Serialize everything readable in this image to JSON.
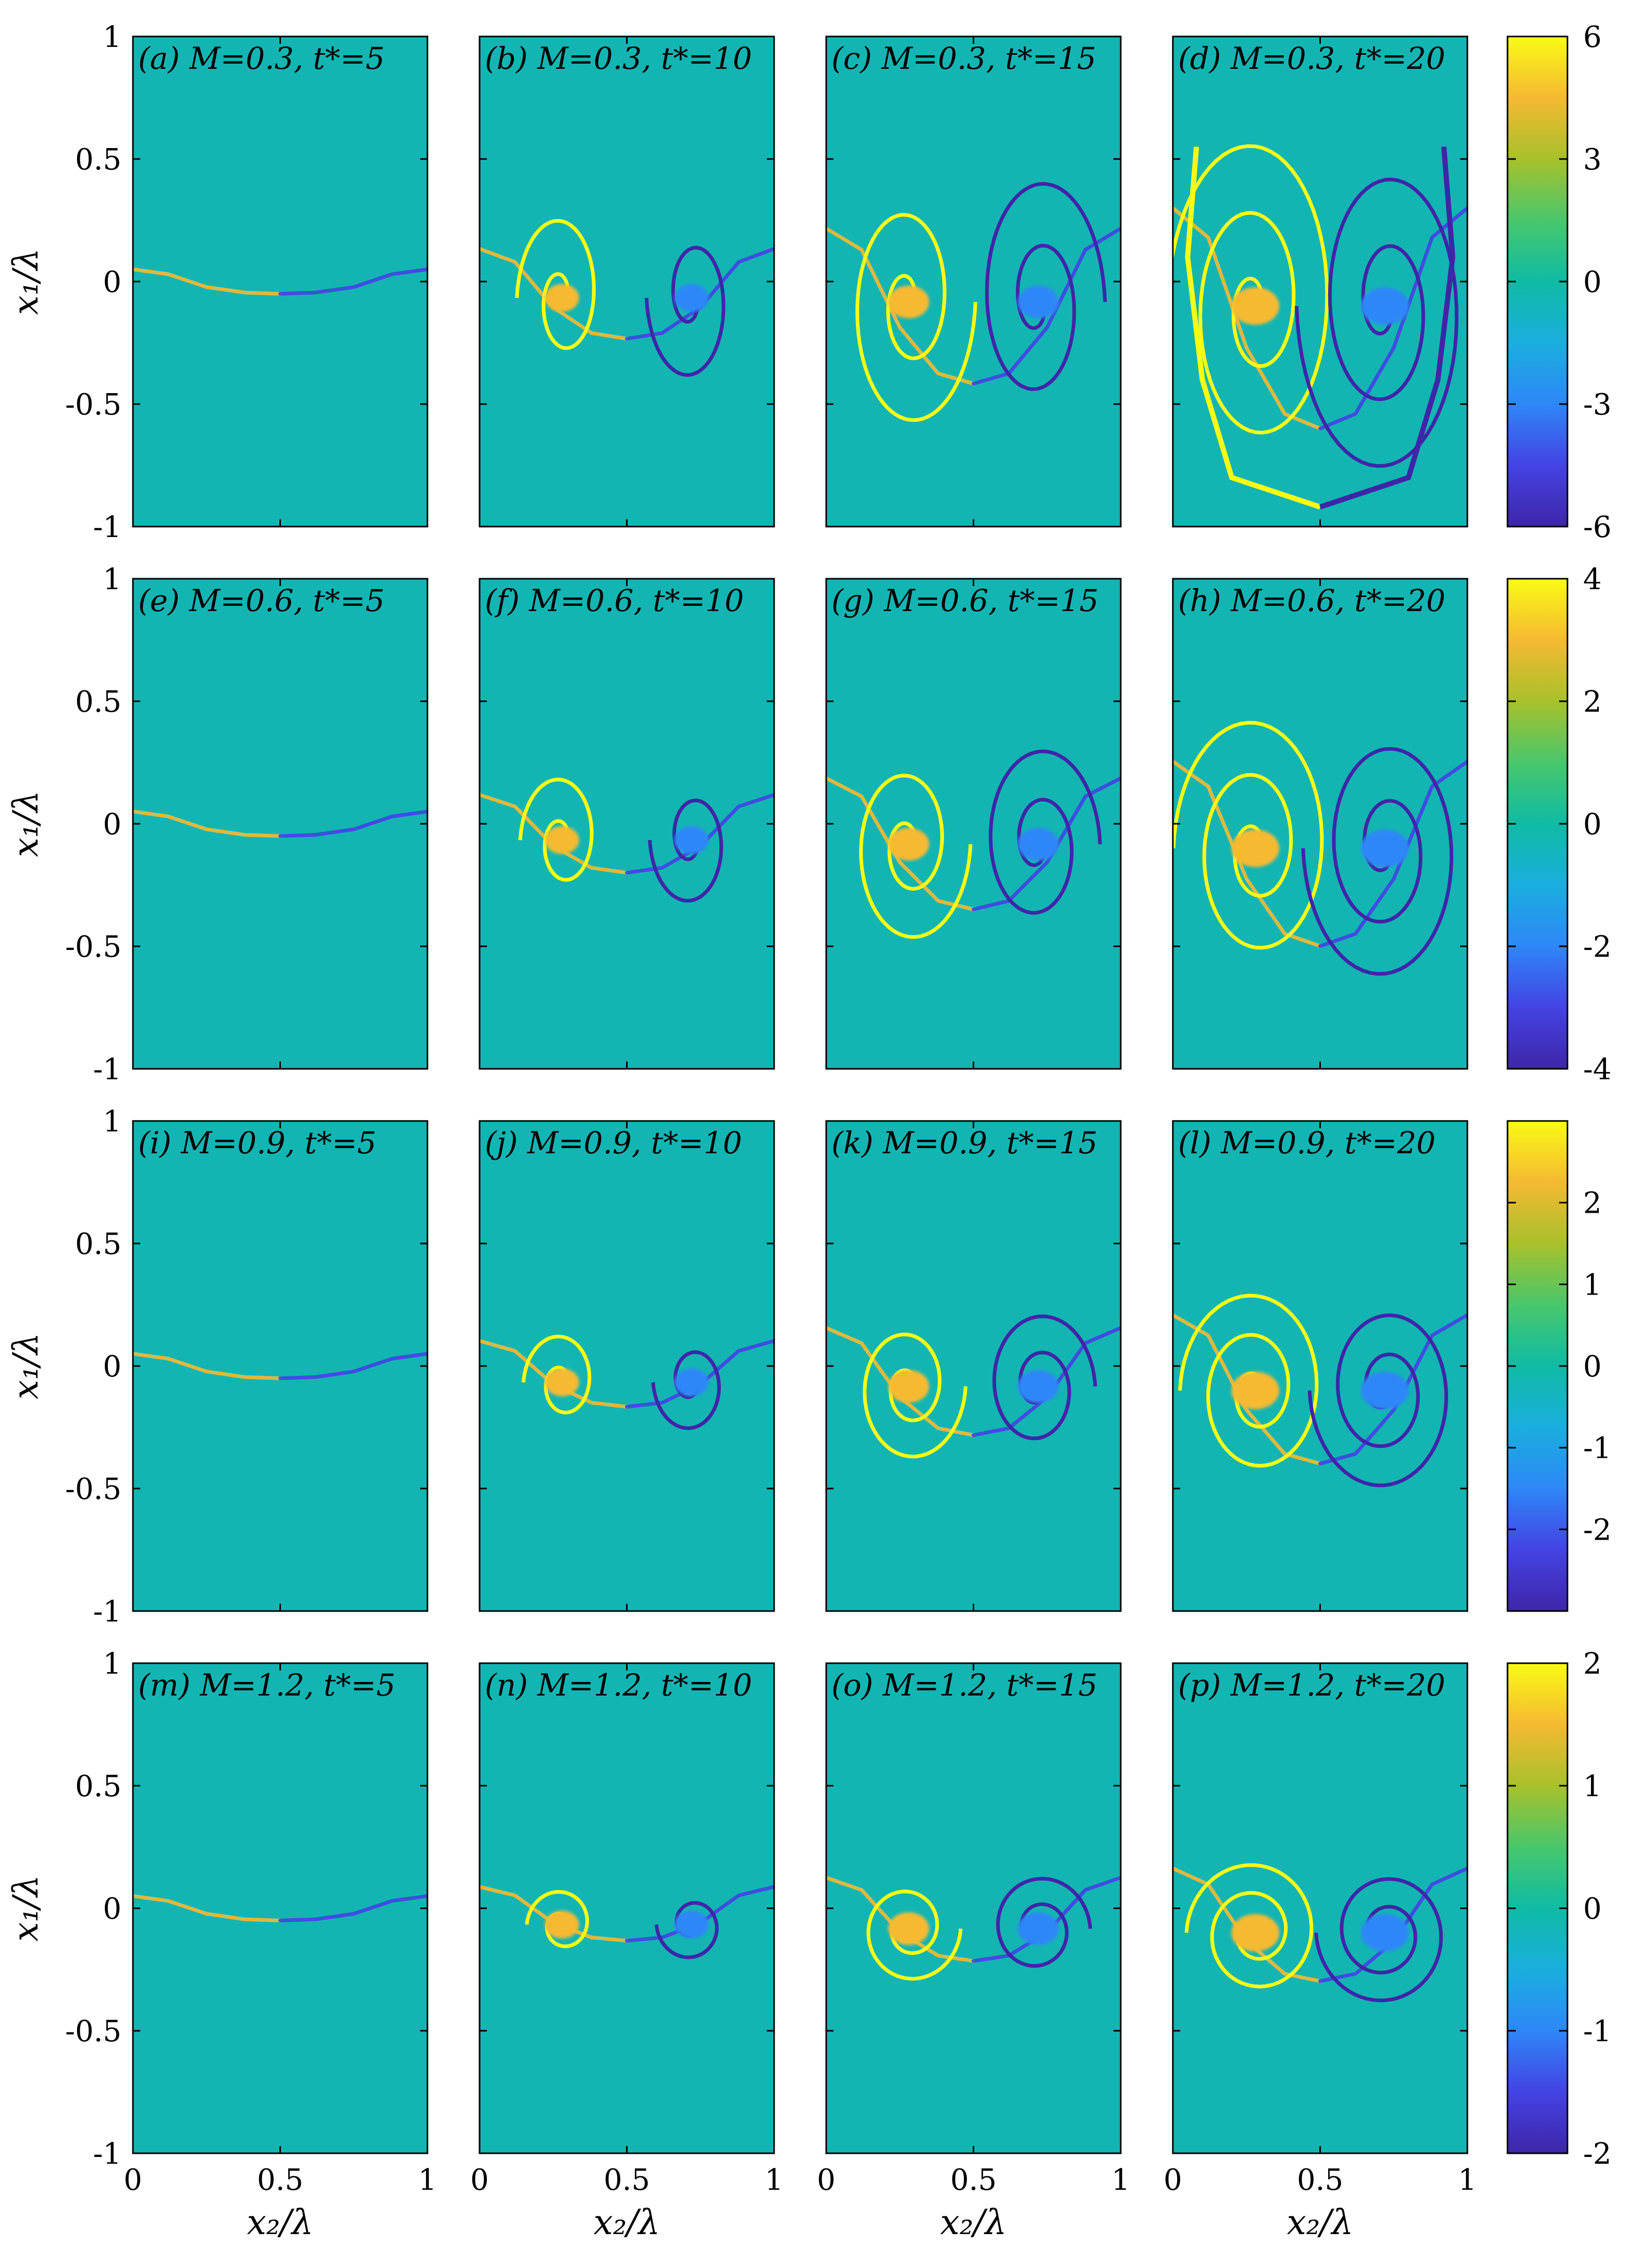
{
  "chart_data": {
    "type": "heatmap",
    "layout": "4 rows x 4 columns of field panels, one colorbar per row",
    "x_label": "x₂/λ",
    "y_label": "x₁/λ",
    "x_ticks": [
      "0",
      "0.5",
      "1"
    ],
    "y_ticks": [
      "1",
      "0.5",
      "0",
      "-0.5",
      "-1"
    ],
    "xlim": [
      0,
      1
    ],
    "ylim": [
      -1,
      1
    ],
    "colormap": "parula",
    "colormap_stops": [
      "#3e26a8",
      "#4443e4",
      "#2e87f7",
      "#1aaede",
      "#0fbba4",
      "#48c76b",
      "#a8c12b",
      "#f5b932",
      "#f9fb15"
    ],
    "background_color": "#13b5b3",
    "rows": [
      {
        "mach": 0.3,
        "colorbar": {
          "range": [
            -6,
            6
          ],
          "ticks": [
            "6",
            "3",
            "0",
            "-3",
            "-6"
          ],
          "tick_values": [
            6,
            3,
            0,
            -3,
            -6
          ]
        },
        "panels": [
          {
            "label": "(a) M=0.3, t*=5",
            "t": 5
          },
          {
            "label": "(b) M=0.3, t*=10",
            "t": 10
          },
          {
            "label": "(c) M=0.3, t*=15",
            "t": 15
          },
          {
            "label": "(d) M=0.3, t*=20",
            "t": 20
          }
        ]
      },
      {
        "mach": 0.6,
        "colorbar": {
          "range": [
            -4,
            4
          ],
          "ticks": [
            "4",
            "2",
            "0",
            "-2",
            "-4"
          ],
          "tick_values": [
            4,
            2,
            0,
            -2,
            -4
          ]
        },
        "panels": [
          {
            "label": "(e) M=0.6, t*=5",
            "t": 5
          },
          {
            "label": "(f) M=0.6, t*=10",
            "t": 10
          },
          {
            "label": "(g) M=0.6, t*=15",
            "t": 15
          },
          {
            "label": "(h) M=0.6, t*=20",
            "t": 20
          }
        ]
      },
      {
        "mach": 0.9,
        "colorbar": {
          "range": [
            -3,
            3
          ],
          "ticks": [
            "2",
            "1",
            "0",
            "-1",
            "-2"
          ],
          "tick_values": [
            2,
            1,
            0,
            -1,
            -2
          ]
        },
        "panels": [
          {
            "label": "(i) M=0.9, t*=5",
            "t": 5
          },
          {
            "label": "(j) M=0.9, t*=10",
            "t": 10
          },
          {
            "label": "(k) M=0.9, t*=15",
            "t": 15
          },
          {
            "label": "(l) M=0.9, t*=20",
            "t": 20
          }
        ]
      },
      {
        "mach": 1.2,
        "colorbar": {
          "range": [
            -2,
            2
          ],
          "ticks": [
            "2",
            "1",
            "0",
            "-1",
            "-2"
          ],
          "tick_values": [
            2,
            1,
            0,
            -1,
            -2
          ]
        },
        "panels": [
          {
            "label": "(m) M=1.2, t*=5",
            "t": 5
          },
          {
            "label": "(n) M=1.2, t*=10",
            "t": 10
          },
          {
            "label": "(o) M=1.2, t*=15",
            "t": 15
          },
          {
            "label": "(p) M=1.2, t*=20",
            "t": 20
          }
        ]
      }
    ]
  }
}
